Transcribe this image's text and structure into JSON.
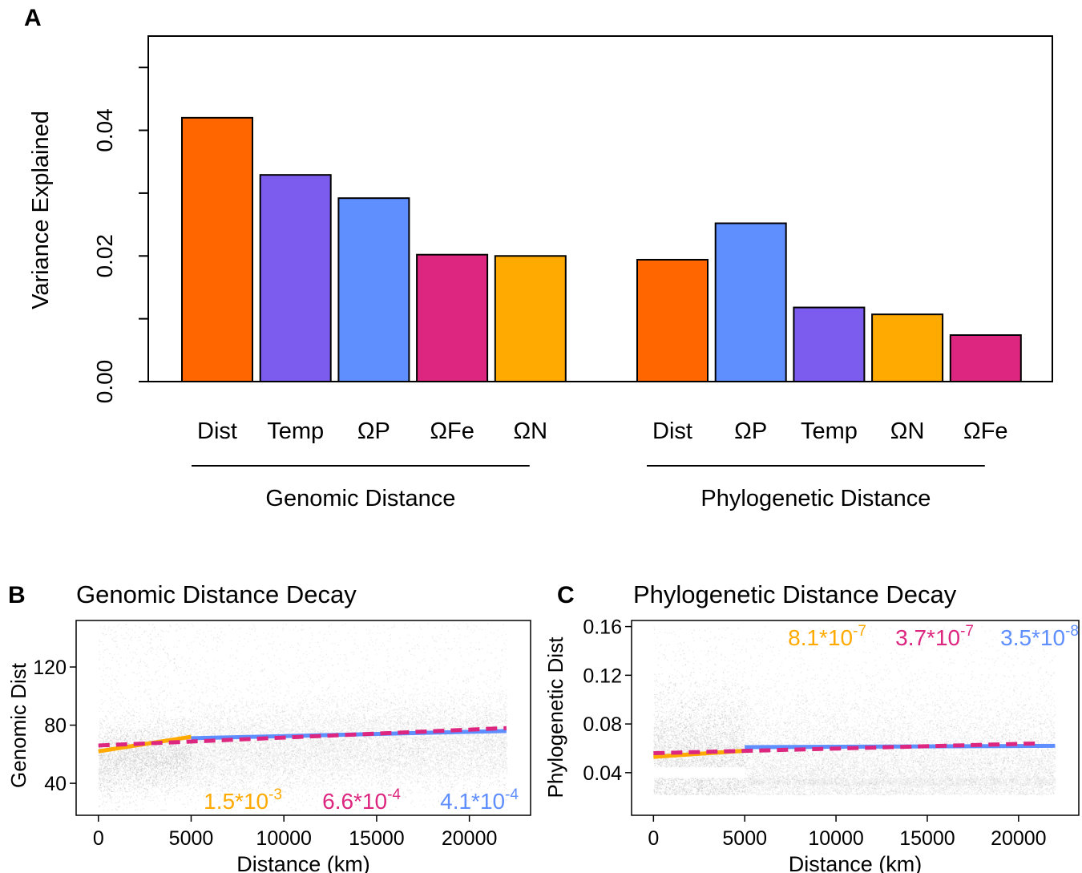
{
  "chart_data": [
    {
      "type": "bar",
      "panel": "A",
      "ylabel": "Variance Explained",
      "ylim": [
        0,
        0.055
      ],
      "yticks": [
        0.0,
        0.01,
        0.02,
        0.03,
        0.04,
        0.05
      ],
      "ytick_labels": [
        "0.00",
        "0.02",
        "0.04"
      ],
      "groups": [
        {
          "name": "Genomic Distance",
          "categories": [
            "Dist",
            "Temp",
            "ΩP",
            "ΩFe",
            "ΩN"
          ],
          "values": [
            0.042,
            0.0329,
            0.0292,
            0.0202,
            0.02
          ],
          "colors": [
            "#FF6600",
            "#7B5CEE",
            "#5F8EFF",
            "#DC267F",
            "#FFAA00"
          ]
        },
        {
          "name": "Phylogenetic Distance",
          "categories": [
            "Dist",
            "ΩP",
            "Temp",
            "ΩN",
            "ΩFe"
          ],
          "values": [
            0.0194,
            0.0252,
            0.0118,
            0.0107,
            0.0074
          ],
          "colors": [
            "#FF6600",
            "#5F8EFF",
            "#7B5CEE",
            "#FFAA00",
            "#DC267F"
          ]
        }
      ]
    },
    {
      "type": "scatter",
      "panel": "B",
      "title": "Genomic Distance Decay",
      "xlabel": "Distance (km)",
      "ylabel": "Genomic Dist",
      "xlim": [
        -1200,
        23300
      ],
      "ylim": [
        18,
        152
      ],
      "xticks": [
        0,
        5000,
        10000,
        15000,
        20000
      ],
      "yticks": [
        40,
        80,
        120
      ],
      "fits": [
        {
          "x": [
            0,
            5000
          ],
          "y": [
            62,
            72
          ],
          "color": "#FFAA00",
          "style": "solid"
        },
        {
          "x": [
            5000,
            22000
          ],
          "y": [
            71,
            76
          ],
          "color": "#5F8EFF",
          "style": "solid"
        },
        {
          "x": [
            0,
            22000
          ],
          "y": [
            66,
            78
          ],
          "color": "#DC267F",
          "style": "dashed"
        }
      ],
      "slopes": [
        {
          "base": "1.5*10",
          "exp": "-3",
          "color": "#FFAA00"
        },
        {
          "base": "6.6*10",
          "exp": "-4",
          "color": "#DC267F"
        },
        {
          "base": "4.1*10",
          "exp": "-4",
          "color": "#5F8EFF"
        }
      ]
    },
    {
      "type": "scatter",
      "panel": "C",
      "title": "Phylogenetic Distance Decay",
      "xlabel": "Distance (km)",
      "ylabel": "Phylogenetic Dist",
      "xlim": [
        -1200,
        23300
      ],
      "ylim": [
        0.005,
        0.165
      ],
      "xticks": [
        0,
        5000,
        10000,
        15000,
        20000
      ],
      "yticks": [
        0.04,
        0.08,
        0.12,
        0.16
      ],
      "fits": [
        {
          "x": [
            0,
            5000
          ],
          "y": [
            0.053,
            0.058
          ],
          "color": "#FFAA00",
          "style": "solid"
        },
        {
          "x": [
            5000,
            22000
          ],
          "y": [
            0.061,
            0.062
          ],
          "color": "#5F8EFF",
          "style": "solid"
        },
        {
          "x": [
            0,
            21000
          ],
          "y": [
            0.056,
            0.064
          ],
          "color": "#DC267F",
          "style": "dashed"
        }
      ],
      "slopes": [
        {
          "base": "8.1*10",
          "exp": "-7",
          "color": "#FFAA00"
        },
        {
          "base": "3.7*10",
          "exp": "-7",
          "color": "#DC267F"
        },
        {
          "base": "3.5*10",
          "exp": "-8",
          "color": "#5F8EFF"
        }
      ]
    }
  ],
  "panel_labels": {
    "a": "A",
    "b": "B",
    "c": "C"
  }
}
